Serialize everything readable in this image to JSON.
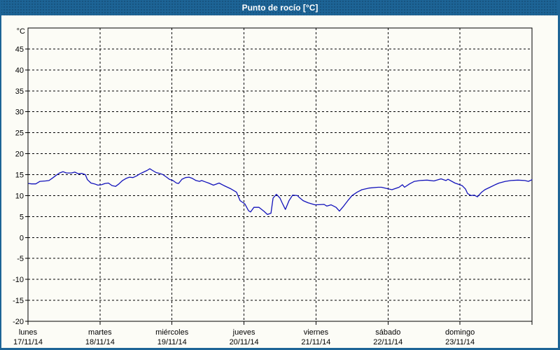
{
  "window": {
    "title": "Punto de rocío [°C]"
  },
  "colors": {
    "titlebar_bg": "#1d6496",
    "titlebar_text": "#ffffff",
    "window_bg": "#fcfcf6",
    "border": "#1d6496",
    "grid": "#000000",
    "axis": "#000000",
    "line": "#1212bb"
  },
  "chart_data": {
    "type": "line",
    "title": "Punto de rocío [°C]",
    "ylabel_unit": "°C",
    "ylim": [
      -20,
      50
    ],
    "yticks": [
      45,
      40,
      35,
      30,
      25,
      20,
      15,
      10,
      5,
      0,
      -5,
      -10,
      -15,
      -20
    ],
    "grid": "dashed",
    "legend_position": "none",
    "x_axis": {
      "type": "time",
      "hours_range": [
        0,
        168
      ],
      "day_tick_hours": [
        0,
        24,
        48,
        72,
        96,
        120,
        144
      ],
      "days": [
        {
          "name": "lunes",
          "date": "17/11/14"
        },
        {
          "name": "martes",
          "date": "18/11/14"
        },
        {
          "name": "miércoles",
          "date": "19/11/14"
        },
        {
          "name": "jueves",
          "date": "20/11/14"
        },
        {
          "name": "viernes",
          "date": "21/11/14"
        },
        {
          "name": "sábado",
          "date": "22/11/14"
        },
        {
          "name": "domingo",
          "date": "23/11/14"
        }
      ]
    },
    "series": [
      {
        "name": "Punto de rocío",
        "color": "#1212bb",
        "x_unit": "hours_from_monday_00:00",
        "points": [
          [
            0.2,
            12.9
          ],
          [
            1.2,
            12.8
          ],
          [
            2.6,
            12.8
          ],
          [
            4,
            13.4
          ],
          [
            5.8,
            13.5
          ],
          [
            7,
            13.6
          ],
          [
            8.2,
            14.2
          ],
          [
            9.3,
            14.8
          ],
          [
            10.5,
            15.4
          ],
          [
            11.7,
            15.7
          ],
          [
            12.8,
            15.4
          ],
          [
            14.5,
            15.4
          ],
          [
            15.6,
            15.6
          ],
          [
            16.8,
            15.2
          ],
          [
            18,
            15.3
          ],
          [
            19.1,
            15.0
          ],
          [
            19.8,
            13.8
          ],
          [
            21,
            13.0
          ],
          [
            22.2,
            12.8
          ],
          [
            23.3,
            12.5
          ],
          [
            24.5,
            12.6
          ],
          [
            25.7,
            12.9
          ],
          [
            26.8,
            13.0
          ],
          [
            28,
            12.4
          ],
          [
            29.2,
            12.2
          ],
          [
            30.3,
            12.8
          ],
          [
            31.5,
            13.6
          ],
          [
            32.7,
            14.1
          ],
          [
            33.8,
            14.4
          ],
          [
            35,
            14.3
          ],
          [
            36.2,
            14.7
          ],
          [
            37.3,
            15.2
          ],
          [
            38.5,
            15.6
          ],
          [
            39.7,
            16.0
          ],
          [
            40.6,
            16.4
          ],
          [
            41.5,
            16.0
          ],
          [
            42.7,
            15.5
          ],
          [
            43.9,
            15.3
          ],
          [
            45,
            15.0
          ],
          [
            46.2,
            14.4
          ],
          [
            47.1,
            13.9
          ],
          [
            48.3,
            13.6
          ],
          [
            49.5,
            13.0
          ],
          [
            50.2,
            12.9
          ],
          [
            51.3,
            13.9
          ],
          [
            52.5,
            14.3
          ],
          [
            53.7,
            14.4
          ],
          [
            54.8,
            14.1
          ],
          [
            56,
            13.6
          ],
          [
            57.2,
            13.4
          ],
          [
            57.9,
            13.6
          ],
          [
            59,
            13.3
          ],
          [
            60.2,
            13.0
          ],
          [
            61.8,
            12.5
          ],
          [
            63.7,
            13.0
          ],
          [
            65.3,
            12.4
          ],
          [
            67.7,
            11.6
          ],
          [
            69.5,
            10.8
          ],
          [
            70.7,
            8.8
          ],
          [
            72.3,
            8.0
          ],
          [
            73.5,
            6.4
          ],
          [
            74.2,
            6.1
          ],
          [
            75.3,
            7.2
          ],
          [
            77,
            7.2
          ],
          [
            78.6,
            6.3
          ],
          [
            79.8,
            5.5
          ],
          [
            81,
            5.8
          ],
          [
            81.7,
            9.4
          ],
          [
            82.8,
            10.3
          ],
          [
            84,
            9.4
          ],
          [
            84.7,
            8.3
          ],
          [
            85.8,
            6.7
          ],
          [
            87,
            8.8
          ],
          [
            88.2,
            10.1
          ],
          [
            89.8,
            10.0
          ],
          [
            90.5,
            9.5
          ],
          [
            91.7,
            8.8
          ],
          [
            93.3,
            8.3
          ],
          [
            95.7,
            7.8
          ],
          [
            98.7,
            7.9
          ],
          [
            99.6,
            7.5
          ],
          [
            101,
            7.8
          ],
          [
            102.7,
            7.2
          ],
          [
            103.8,
            6.3
          ],
          [
            105,
            7.3
          ],
          [
            106.6,
            8.8
          ],
          [
            108,
            10.0
          ],
          [
            109.7,
            10.8
          ],
          [
            111.3,
            11.4
          ],
          [
            113.6,
            11.8
          ],
          [
            116.7,
            12.0
          ],
          [
            117.8,
            12.0
          ],
          [
            120.2,
            11.6
          ],
          [
            121.3,
            11.4
          ],
          [
            123.7,
            12.0
          ],
          [
            124.8,
            12.6
          ],
          [
            125.5,
            12.0
          ],
          [
            127.2,
            12.8
          ],
          [
            128.8,
            13.4
          ],
          [
            130.7,
            13.6
          ],
          [
            133,
            13.7
          ],
          [
            135.3,
            13.5
          ],
          [
            137.7,
            14.0
          ],
          [
            139.3,
            13.6
          ],
          [
            140,
            13.9
          ],
          [
            142.3,
            13.0
          ],
          [
            143.5,
            12.7
          ],
          [
            144.7,
            12.4
          ],
          [
            145.8,
            11.6
          ],
          [
            146.5,
            10.5
          ],
          [
            147.7,
            10.0
          ],
          [
            148.8,
            10.1
          ],
          [
            149.8,
            9.7
          ],
          [
            151.2,
            10.8
          ],
          [
            152.3,
            11.4
          ],
          [
            154,
            12.0
          ],
          [
            155.7,
            12.6
          ],
          [
            157,
            13.0
          ],
          [
            159.1,
            13.4
          ],
          [
            161,
            13.6
          ],
          [
            163.3,
            13.7
          ],
          [
            165.6,
            13.6
          ],
          [
            166.8,
            13.4
          ],
          [
            168,
            13.8
          ]
        ]
      }
    ]
  }
}
